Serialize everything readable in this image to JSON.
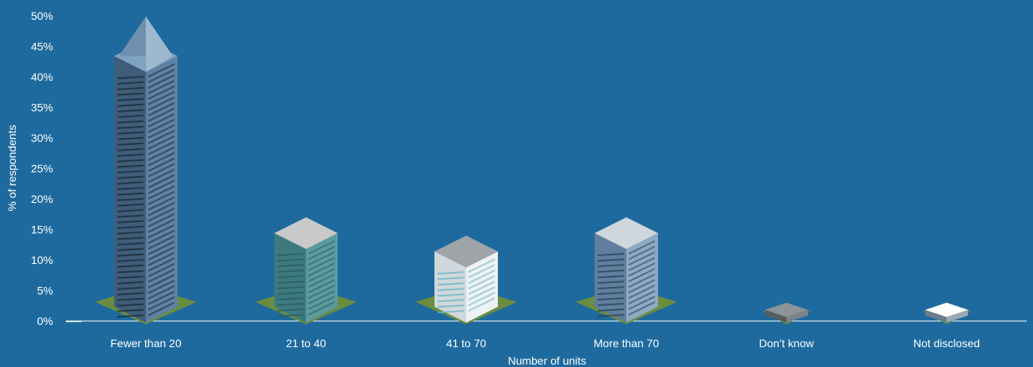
{
  "chart_data": {
    "type": "bar",
    "style": "isometric building pictograph",
    "categories": [
      "Fewer than 20",
      "21 to 40",
      "41 to 70",
      "More than 70",
      "Don’t know",
      "Not disclosed"
    ],
    "values": [
      46,
      17,
      14,
      17,
      3,
      3
    ],
    "ylim": [
      0,
      50
    ],
    "yticks": [
      "0%",
      "5%",
      "10%",
      "15%",
      "20%",
      "25%",
      "30%",
      "35%",
      "40%",
      "45%",
      "50%"
    ],
    "xlabel": "Number of units",
    "ylabel": "% of respondents",
    "grid": false,
    "legend": "none"
  },
  "colors": {
    "background": "#1e6a9e",
    "axis": "#ffffff",
    "text": "#ffffff",
    "grass": "#6f8f3a",
    "grass_light": "#8aaa4a"
  },
  "icons": [
    "skyscraper-icon",
    "glass-tower-icon",
    "apartment-block-icon",
    "office-tower-icon",
    "small-building-icon",
    "small-house-icon"
  ]
}
